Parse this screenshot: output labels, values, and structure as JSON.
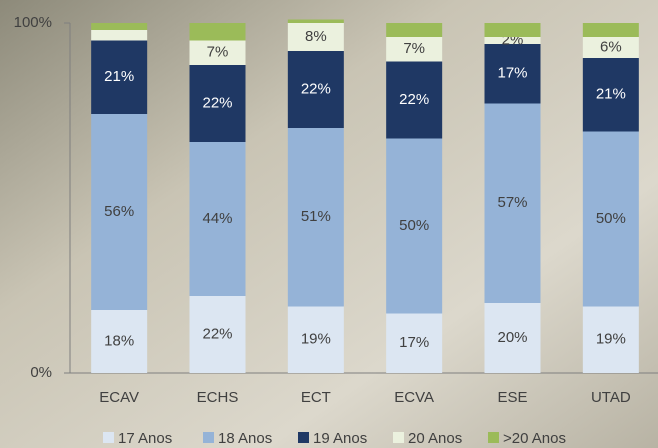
{
  "chart_data": {
    "type": "stacked_bar",
    "categories": [
      "ECAV",
      "ECHS",
      "ECT",
      "ECVA",
      "ESE",
      "UTAD"
    ],
    "series": [
      {
        "name": "17 Anos",
        "color": "#dce6f2",
        "values": [
          18,
          22,
          19,
          17,
          20,
          19
        ],
        "value_labels": [
          "18%",
          "22%",
          "19%",
          "17%",
          "20%",
          "19%"
        ]
      },
      {
        "name": "18 Anos",
        "color": "#95b3d7",
        "values": [
          56,
          44,
          51,
          50,
          57,
          50
        ],
        "value_labels": [
          "56%",
          "44%",
          "51%",
          "50%",
          "57%",
          "50%"
        ]
      },
      {
        "name": "19 Anos",
        "color": "#1f3864",
        "values": [
          21,
          22,
          22,
          22,
          17,
          21
        ],
        "value_labels": [
          "21%",
          "22%",
          "22%",
          "22%",
          "17%",
          "21%"
        ]
      },
      {
        "name": "20 Anos",
        "color": "#ebf1de",
        "values": [
          3,
          7,
          8,
          7,
          2,
          6
        ],
        "value_labels": [
          null,
          "7%",
          "8%",
          "7%",
          "2%",
          "6%"
        ]
      },
      {
        "name": ">20 Anos",
        "color": "#9bbb59",
        "values": [
          2,
          5,
          1,
          4,
          4,
          4
        ],
        "value_labels": [
          null,
          null,
          null,
          null,
          null,
          null
        ]
      }
    ],
    "ylim": [
      0,
      100
    ],
    "yticks": [
      {
        "value": 0,
        "label": "0%"
      },
      {
        "value": 100,
        "label": "100%"
      }
    ]
  }
}
